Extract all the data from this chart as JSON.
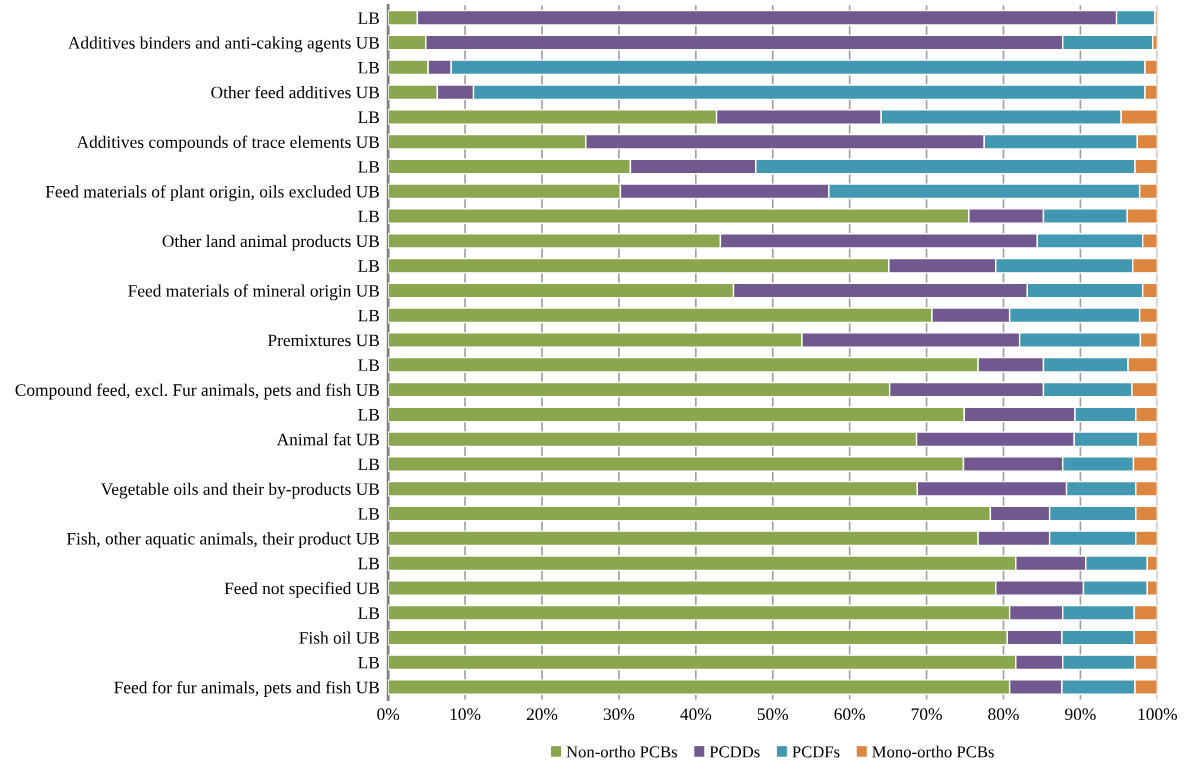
{
  "chart_data": {
    "type": "bar",
    "orientation": "horizontal",
    "stacked": true,
    "categories": [
      "LB",
      "Additives binders and anti-caking agents UB",
      "LB",
      "Other feed additives UB",
      "LB",
      "Additives compounds of trace elements UB",
      "LB",
      "Feed materials of plant origin, oils excluded UB",
      "LB",
      "Other land animal products UB",
      "LB",
      "Feed materials of mineral origin UB",
      "LB",
      "Premixtures UB",
      "LB",
      "Compound feed, excl. Fur animals, pets and fish UB",
      "LB",
      "Animal fat UB",
      "LB",
      "Vegetable oils and their by-products UB",
      "LB",
      "Fish, other aquatic animals, their product UB",
      "LB",
      "Feed not specified UB",
      "LB",
      "Fish oil UB",
      "LB",
      "Feed for fur animals, pets and fish UB"
    ],
    "series": [
      {
        "name": "Non-ortho PCBs",
        "color": "#8aa64e",
        "values": [
          3.8,
          4.9,
          5.2,
          6.4,
          42.7,
          25.7,
          31.5,
          30.2,
          75.5,
          43.2,
          65.1,
          44.9,
          70.7,
          53.8,
          76.7,
          65.2,
          74.9,
          68.7,
          74.8,
          68.8,
          78.3,
          76.7,
          81.6,
          79.0,
          80.8,
          80.5,
          81.6,
          80.8
        ]
      },
      {
        "name": "PCDDs",
        "color": "#71588f",
        "values": [
          90.9,
          82.8,
          3.0,
          4.7,
          21.4,
          51.8,
          16.3,
          27.1,
          9.7,
          41.2,
          13.9,
          38.2,
          10.1,
          28.3,
          8.5,
          20.0,
          14.4,
          20.5,
          12.9,
          19.4,
          7.7,
          9.3,
          9.1,
          11.4,
          6.9,
          7.1,
          6.1,
          6.8
        ]
      },
      {
        "name": "PCDFs",
        "color": "#4298b0",
        "values": [
          5.0,
          11.7,
          90.2,
          87.3,
          31.2,
          19.9,
          49.3,
          40.4,
          10.9,
          13.7,
          17.8,
          15.0,
          16.9,
          15.7,
          11.0,
          11.5,
          7.9,
          8.3,
          9.2,
          9.0,
          11.2,
          11.2,
          8.0,
          8.3,
          9.3,
          9.4,
          9.4,
          9.5
        ]
      },
      {
        "name": "Mono-ortho PCBs",
        "color": "#dd8640",
        "values": [
          0.3,
          0.6,
          1.6,
          1.6,
          4.7,
          2.6,
          2.9,
          2.3,
          3.9,
          1.9,
          3.2,
          1.9,
          2.3,
          2.2,
          3.8,
          3.3,
          2.8,
          2.5,
          3.1,
          2.8,
          2.8,
          2.8,
          1.3,
          1.3,
          3.0,
          3.0,
          2.9,
          2.9
        ]
      }
    ],
    "xlim": [
      0,
      100
    ],
    "xticks": [
      {
        "value": 0,
        "label": "0%"
      },
      {
        "value": 10,
        "label": "10%"
      },
      {
        "value": 20,
        "label": "20%"
      },
      {
        "value": 30,
        "label": "30%"
      },
      {
        "value": 40,
        "label": "40%"
      },
      {
        "value": 50,
        "label": "50%"
      },
      {
        "value": 60,
        "label": "60%"
      },
      {
        "value": 70,
        "label": "70%"
      },
      {
        "value": 80,
        "label": "80%"
      },
      {
        "value": 90,
        "label": "90%"
      },
      {
        "value": 100,
        "label": "100%"
      }
    ],
    "grid": "x",
    "legend": "bottom"
  }
}
